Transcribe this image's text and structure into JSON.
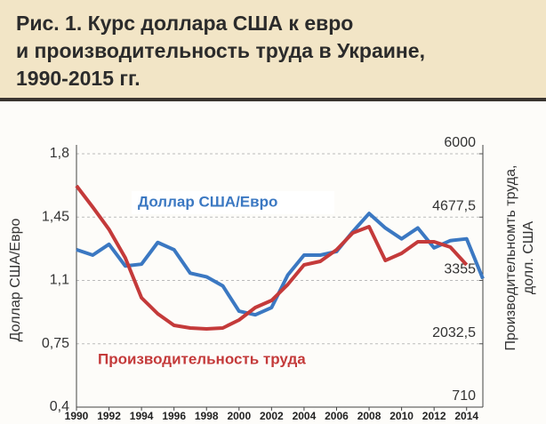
{
  "chart_data": {
    "type": "line",
    "title": [
      "Рис. 1. Курс доллара США к евро",
      "и производительность труда в Украине,",
      "1990-2015 гг."
    ],
    "y_label": "Доллар США/Евро",
    "y2_label": [
      "Производительномть труда,",
      "долл. США"
    ],
    "x": [
      1990,
      1991,
      1992,
      1993,
      1994,
      1995,
      1996,
      1997,
      1998,
      1999,
      2000,
      2001,
      2002,
      2003,
      2004,
      2005,
      2006,
      2007,
      2008,
      2009,
      2010,
      2011,
      2012,
      2013,
      2014,
      2015
    ],
    "xlim": [
      1990,
      2015
    ],
    "xticks": [
      1990,
      1992,
      1994,
      1996,
      1998,
      2000,
      2002,
      2004,
      2006,
      2008,
      2010,
      2012,
      2014
    ],
    "ylim": [
      0.4,
      1.8
    ],
    "yticks": [
      {
        "value": 0.4,
        "label": "0,4"
      },
      {
        "value": 0.75,
        "label": "0,75"
      },
      {
        "value": 1.1,
        "label": "1,1"
      },
      {
        "value": 1.45,
        "label": "1,45"
      },
      {
        "value": 1.8,
        "label": "1,8"
      }
    ],
    "y2lim": [
      710,
      6000
    ],
    "y2ticks": [
      710,
      {
        "value": 2032.5,
        "label": "2032,5"
      },
      3355,
      {
        "value": 4677.5,
        "label": "4677,5"
      },
      6000
    ],
    "grid": true,
    "series": [
      {
        "name": "Доллар США/Евро",
        "color": "#3b78c2",
        "values": [
          1.27,
          1.24,
          1.3,
          1.18,
          1.19,
          1.31,
          1.27,
          1.14,
          1.12,
          1.07,
          0.93,
          0.91,
          0.95,
          1.13,
          1.24,
          1.24,
          1.26,
          1.37,
          1.47,
          1.39,
          1.33,
          1.39,
          1.28,
          1.32,
          1.33,
          1.11
        ]
      },
      {
        "name": "Производительность труда",
        "color": "#c43a3a",
        "axis": "y2",
        "values": [
          5332,
          4886,
          4422,
          3828,
          2993,
          2659,
          2418,
          2362,
          2343,
          2362,
          2529,
          2789,
          2937,
          3271,
          3680,
          3754,
          3995,
          4348,
          4478,
          3772,
          3921,
          4162,
          4162,
          4051,
          3680,
          null
        ]
      }
    ]
  }
}
